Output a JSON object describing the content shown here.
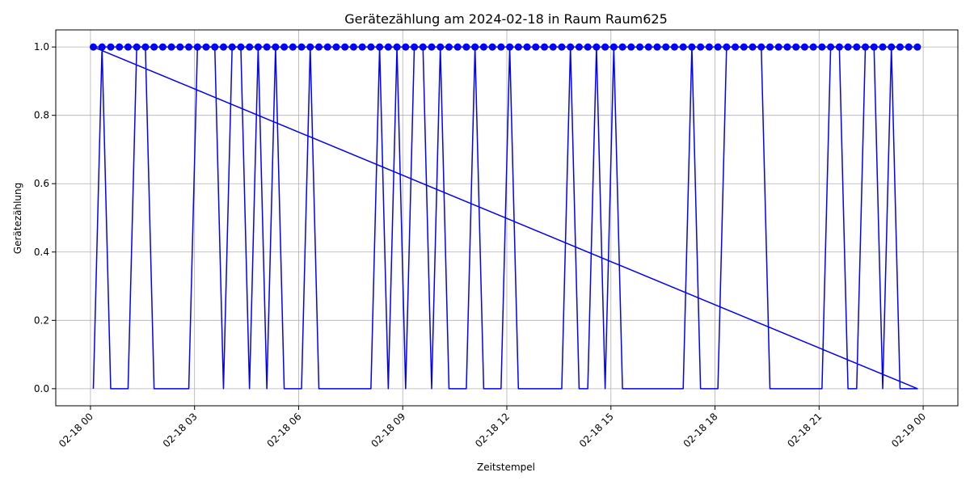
{
  "chart_data": {
    "type": "line",
    "title": "Gerätezählung am 2024-02-18 in Raum Raum625",
    "xlabel": "Zeitstempel",
    "ylabel": "Gerätezählung",
    "xlim": [
      "2024-02-17 23:00",
      "2024-02-19 01:00"
    ],
    "ylim": [
      -0.05,
      1.05
    ],
    "x_ticks": [
      "02-18 00",
      "02-18 03",
      "02-18 06",
      "02-18 09",
      "02-18 12",
      "02-18 15",
      "02-18 18",
      "02-18 21",
      "02-19 00"
    ],
    "y_ticks": [
      "0.0",
      "0.2",
      "0.4",
      "0.6",
      "0.8",
      "1.0"
    ],
    "grid": true,
    "color": "#0000ff",
    "marker": "circle",
    "series": [
      {
        "x": [
          "2024-02-18 00:05",
          "2024-02-18 00:20",
          "2024-02-18 00:35",
          "2024-02-18 00:50",
          "2024-02-18 01:05",
          "2024-02-18 01:20",
          "2024-02-18 01:35",
          "2024-02-18 01:50",
          "2024-02-18 02:05",
          "2024-02-18 02:20",
          "2024-02-18 02:35",
          "2024-02-18 02:50",
          "2024-02-18 03:05",
          "2024-02-18 03:20",
          "2024-02-18 03:35",
          "2024-02-18 03:50",
          "2024-02-18 04:05",
          "2024-02-18 04:20",
          "2024-02-18 04:35",
          "2024-02-18 04:50",
          "2024-02-18 05:05",
          "2024-02-18 05:20",
          "2024-02-18 05:35",
          "2024-02-18 05:50",
          "2024-02-18 06:05",
          "2024-02-18 06:20",
          "2024-02-18 06:35",
          "2024-02-18 06:50",
          "2024-02-18 07:05",
          "2024-02-18 07:20",
          "2024-02-18 07:35",
          "2024-02-18 07:50",
          "2024-02-18 08:05",
          "2024-02-18 08:20",
          "2024-02-18 08:35",
          "2024-02-18 08:50",
          "2024-02-18 09:05",
          "2024-02-18 09:20",
          "2024-02-18 09:35",
          "2024-02-18 09:50",
          "2024-02-18 10:05",
          "2024-02-18 10:20",
          "2024-02-18 10:35",
          "2024-02-18 10:50",
          "2024-02-18 11:05",
          "2024-02-18 11:20",
          "2024-02-18 11:35",
          "2024-02-18 11:50",
          "2024-02-18 12:05",
          "2024-02-18 12:20",
          "2024-02-18 12:35",
          "2024-02-18 12:50",
          "2024-02-18 13:05",
          "2024-02-18 13:20",
          "2024-02-18 13:35",
          "2024-02-18 13:50",
          "2024-02-18 14:05",
          "2024-02-18 14:20",
          "2024-02-18 14:35",
          "2024-02-18 14:50",
          "2024-02-18 15:05",
          "2024-02-18 15:20",
          "2024-02-18 15:35",
          "2024-02-18 15:50",
          "2024-02-18 16:05",
          "2024-02-18 16:20",
          "2024-02-18 16:35",
          "2024-02-18 16:50",
          "2024-02-18 17:05",
          "2024-02-18 17:20",
          "2024-02-18 17:35",
          "2024-02-18 17:50",
          "2024-02-18 18:05",
          "2024-02-18 18:20",
          "2024-02-18 18:35",
          "2024-02-18 18:50",
          "2024-02-18 19:05",
          "2024-02-18 19:20",
          "2024-02-18 19:35",
          "2024-02-18 19:50",
          "2024-02-18 20:05",
          "2024-02-18 20:20",
          "2024-02-18 20:35",
          "2024-02-18 20:50",
          "2024-02-18 21:05",
          "2024-02-18 21:20",
          "2024-02-18 21:35",
          "2024-02-18 21:50",
          "2024-02-18 22:05",
          "2024-02-18 22:20",
          "2024-02-18 22:35",
          "2024-02-18 22:50",
          "2024-02-18 23:05",
          "2024-02-18 23:20",
          "2024-02-18 23:35",
          "2024-02-18 23:50",
          "2024-02-18 00:05"
        ],
        "y": [
          0,
          1,
          0,
          0,
          0,
          1,
          1,
          0,
          0,
          0,
          0,
          0,
          1,
          1,
          1,
          0,
          1,
          1,
          0,
          1,
          0,
          1,
          0,
          0,
          0,
          1,
          0,
          0,
          0,
          0,
          0,
          0,
          0,
          1,
          0,
          1,
          0,
          1,
          1,
          0,
          1,
          0,
          0,
          0,
          1,
          0,
          0,
          0,
          1,
          0,
          0,
          0,
          0,
          0,
          0,
          1,
          0,
          0,
          1,
          0,
          1,
          0,
          0,
          0,
          0,
          0,
          0,
          0,
          0,
          1,
          0,
          0,
          0,
          1,
          1,
          1,
          1,
          1,
          0,
          0,
          0,
          0,
          0,
          0,
          0,
          1,
          1,
          0,
          0,
          1,
          1,
          0,
          1,
          0,
          0,
          0,
          1
        ]
      },
      {
        "x": [
          "2024-02-18 00:05",
          "2024-02-18 00:20",
          "2024-02-18 00:35",
          "2024-02-18 00:50",
          "2024-02-18 01:05",
          "2024-02-18 01:20",
          "2024-02-18 01:35",
          "2024-02-18 01:50",
          "2024-02-18 02:05",
          "2024-02-18 02:20",
          "2024-02-18 02:35",
          "2024-02-18 02:50",
          "2024-02-18 03:05",
          "2024-02-18 03:20",
          "2024-02-18 03:35",
          "2024-02-18 03:50",
          "2024-02-18 04:05",
          "2024-02-18 04:20",
          "2024-02-18 04:35",
          "2024-02-18 04:50",
          "2024-02-18 05:05",
          "2024-02-18 05:20",
          "2024-02-18 05:35",
          "2024-02-18 05:50",
          "2024-02-18 06:05",
          "2024-02-18 06:20",
          "2024-02-18 06:35",
          "2024-02-18 06:50",
          "2024-02-18 07:05",
          "2024-02-18 07:20",
          "2024-02-18 07:35",
          "2024-02-18 07:50",
          "2024-02-18 08:05",
          "2024-02-18 08:20",
          "2024-02-18 08:35",
          "2024-02-18 08:50",
          "2024-02-18 09:05",
          "2024-02-18 09:20",
          "2024-02-18 09:35",
          "2024-02-18 09:50",
          "2024-02-18 10:05",
          "2024-02-18 10:20",
          "2024-02-18 10:35",
          "2024-02-18 10:50",
          "2024-02-18 11:05",
          "2024-02-18 11:20",
          "2024-02-18 11:35",
          "2024-02-18 11:50",
          "2024-02-18 12:05",
          "2024-02-18 12:20",
          "2024-02-18 12:35",
          "2024-02-18 12:50",
          "2024-02-18 13:05",
          "2024-02-18 13:20",
          "2024-02-18 13:35",
          "2024-02-18 13:50",
          "2024-02-18 14:05",
          "2024-02-18 14:20",
          "2024-02-18 14:35",
          "2024-02-18 14:50",
          "2024-02-18 15:05",
          "2024-02-18 15:20",
          "2024-02-18 15:35",
          "2024-02-18 15:50",
          "2024-02-18 16:05",
          "2024-02-18 16:20",
          "2024-02-18 16:35",
          "2024-02-18 16:50",
          "2024-02-18 17:05",
          "2024-02-18 17:20",
          "2024-02-18 17:35",
          "2024-02-18 17:50",
          "2024-02-18 18:05",
          "2024-02-18 18:20",
          "2024-02-18 18:35",
          "2024-02-18 18:50",
          "2024-02-18 19:05",
          "2024-02-18 19:20",
          "2024-02-18 19:35",
          "2024-02-18 19:50",
          "2024-02-18 20:05",
          "2024-02-18 20:20",
          "2024-02-18 20:35",
          "2024-02-18 20:50",
          "2024-02-18 21:05",
          "2024-02-18 21:20",
          "2024-02-18 21:35",
          "2024-02-18 21:50",
          "2024-02-18 22:05",
          "2024-02-18 22:20",
          "2024-02-18 22:35",
          "2024-02-18 22:50",
          "2024-02-18 23:05",
          "2024-02-18 23:20",
          "2024-02-18 23:35",
          "2024-02-18 23:50"
        ],
        "y": [
          1,
          1,
          1,
          1,
          1,
          1,
          1,
          1,
          1,
          1,
          1,
          1,
          1,
          1,
          1,
          1,
          1,
          1,
          1,
          1,
          1,
          1,
          1,
          1,
          1,
          1,
          1,
          1,
          1,
          1,
          1,
          1,
          1,
          1,
          1,
          1,
          1,
          1,
          1,
          1,
          1,
          1,
          1,
          1,
          1,
          1,
          1,
          1,
          1,
          1,
          1,
          1,
          1,
          1,
          1,
          1,
          1,
          1,
          1,
          1,
          1,
          1,
          1,
          1,
          1,
          1,
          1,
          1,
          1,
          1,
          1,
          1,
          1,
          1,
          1,
          1,
          1,
          1,
          1,
          1,
          1,
          1,
          1,
          1,
          1,
          1,
          1,
          1,
          1,
          1,
          1,
          1,
          1,
          1,
          1,
          1
        ]
      }
    ]
  }
}
